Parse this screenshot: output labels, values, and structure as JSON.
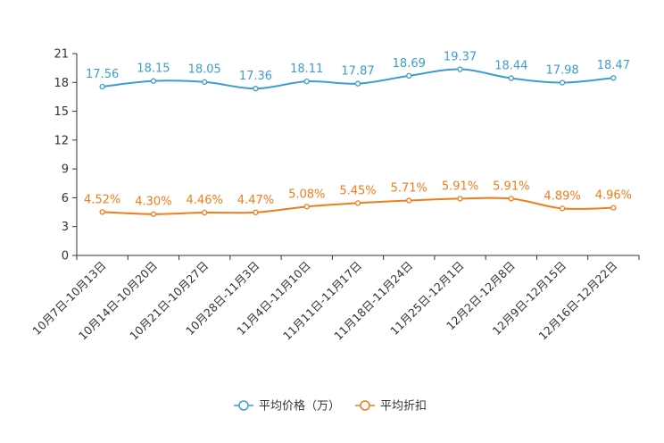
{
  "chart_data": {
    "type": "line",
    "title": "",
    "xlabel": "",
    "ylabel": "",
    "ylim": [
      0,
      21
    ],
    "yticks": [
      0,
      3,
      6,
      9,
      12,
      15,
      18,
      21
    ],
    "grid": false,
    "legend_position": "bottom-center",
    "categories": [
      "10月7日-10月13日",
      "10月14日-10月20日",
      "10月21日-10月27日",
      "10月28日-11月3日",
      "11月4日-11月10日",
      "11月11日-11月17日",
      "11月18日-11月24日",
      "11月25日-12月1日",
      "12月2日-12月8日",
      "12月9日-12月15日",
      "12月16日-12月22日"
    ],
    "series": [
      {
        "name": "平均价格（万）",
        "color": "#3a9fcf",
        "values": [
          17.56,
          18.15,
          18.05,
          17.36,
          18.11,
          17.87,
          18.69,
          19.37,
          18.44,
          17.98,
          18.47
        ],
        "labels": [
          "17.56",
          "18.15",
          "18.05",
          "17.36",
          "18.11",
          "17.87",
          "18.69",
          "19.37",
          "18.44",
          "17.98",
          "18.47"
        ]
      },
      {
        "name": "平均折扣",
        "color": "#f07c1a",
        "values": [
          4.52,
          4.3,
          4.46,
          4.47,
          5.08,
          5.45,
          5.71,
          5.91,
          5.91,
          4.89,
          4.96
        ],
        "labels": [
          "4.52%",
          "4.30%",
          "4.46%",
          "4.47%",
          "5.08%",
          "5.45%",
          "5.71%",
          "5.91%",
          "5.91%",
          "4.89%",
          "4.96%"
        ]
      }
    ]
  }
}
